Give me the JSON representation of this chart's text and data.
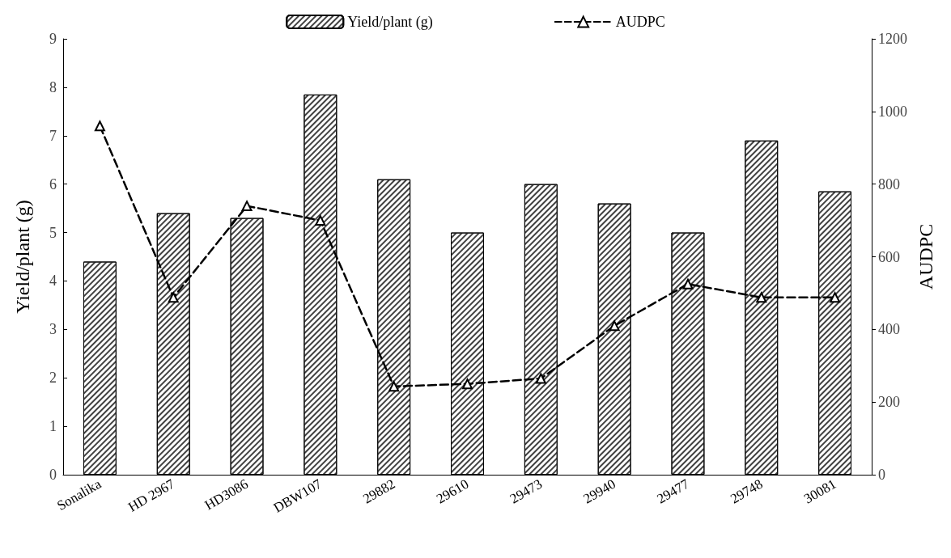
{
  "chart_data": {
    "type": "bar",
    "categories": [
      "Sonalika",
      "HD 2967",
      "HD3086",
      "DBW107",
      "29882",
      "29610",
      "29473",
      "29940",
      "29477",
      "29748",
      "30081"
    ],
    "ylabel": "Yield/plant (g)",
    "y2label": "AUDPC",
    "series": [
      {
        "name": "Yield/plant (g)",
        "color": "#ffffff",
        "values": [
          4.4,
          5.4,
          5.3,
          7.85,
          6.1,
          5.0,
          6.0,
          5.6,
          5.0,
          6.9,
          5.85
        ]
      },
      {
        "name": "AUDPC",
        "type": "line",
        "axis": "y2",
        "color": "#000000",
        "marker": "triangle",
        "line_style": "dashed",
        "values": [
          960,
          488,
          740,
          700,
          243,
          250,
          265,
          410,
          525,
          488,
          488
        ]
      }
    ],
    "ylim": [
      0,
      9
    ],
    "yticks": [
      0,
      1,
      2,
      3,
      4,
      5,
      6,
      7,
      8,
      9
    ],
    "y2lim": [
      0,
      1200
    ],
    "y2ticks": [
      0,
      200,
      400,
      600,
      800,
      1000,
      1200
    ],
    "grid": false,
    "legend": "top"
  }
}
